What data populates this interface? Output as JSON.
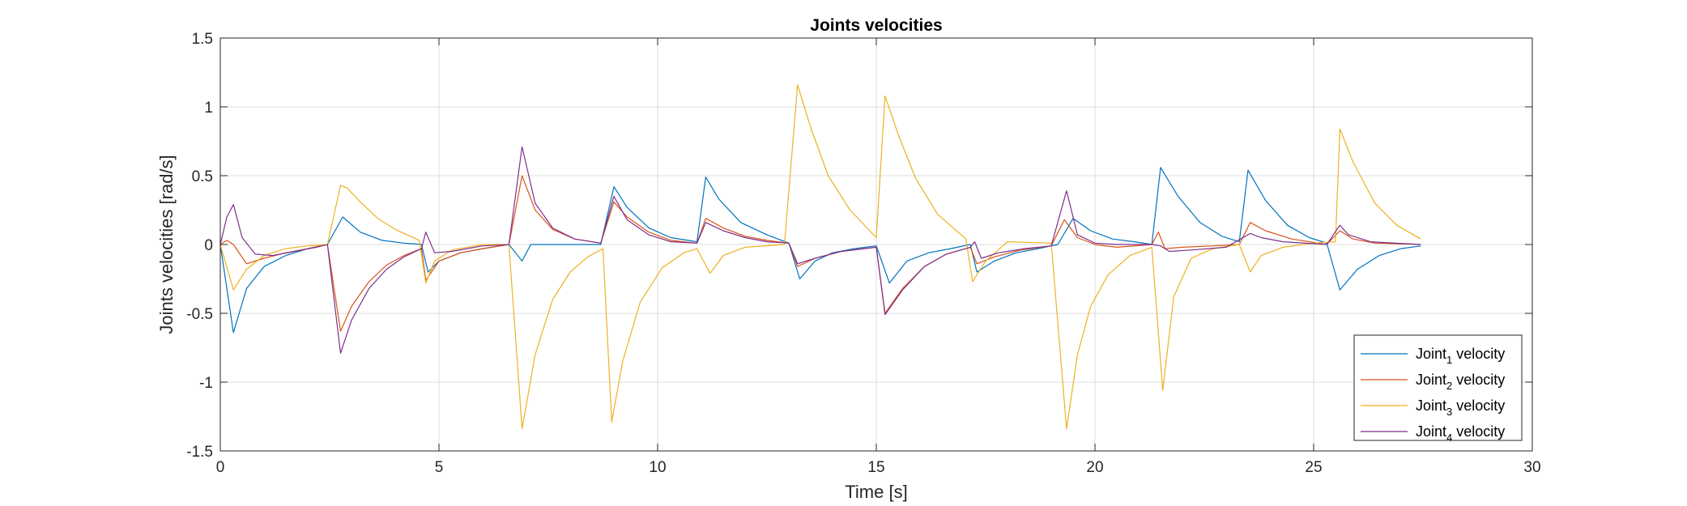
{
  "chart_data": {
    "type": "line",
    "title": "Joints velocities",
    "xlabel": "Time [s]",
    "ylabel": "Joints velocities [rad/s]",
    "xlim": [
      0,
      30
    ],
    "ylim": [
      -1.5,
      1.5
    ],
    "xticks": [
      0,
      5,
      10,
      15,
      20,
      25,
      30
    ],
    "yticks": [
      -1.5,
      -1,
      -0.5,
      0,
      0.5,
      1,
      1.5
    ],
    "xtick_labels": [
      "0",
      "5",
      "10",
      "15",
      "20",
      "25",
      "30"
    ],
    "ytick_labels": [
      "-1.5",
      "-1",
      "-0.5",
      "0",
      "0.5",
      "1",
      "1.5"
    ],
    "grid": true,
    "legend_position": "bottom-right",
    "series": [
      {
        "name": "Joint",
        "subscript": "1",
        "suffix": " velocity",
        "color": "#0072BD",
        "x": [
          0,
          0.3,
          0.6,
          1.0,
          1.5,
          2.0,
          2.45,
          2.8,
          3.2,
          3.7,
          4.2,
          4.6,
          4.75,
          5.0,
          5.5,
          6.0,
          6.6,
          6.9,
          7.1,
          7.5,
          8.0,
          8.7,
          9.0,
          9.3,
          9.8,
          10.3,
          10.9,
          11.1,
          11.4,
          11.9,
          12.5,
          13.0,
          13.25,
          13.6,
          14.0,
          14.5,
          15.0,
          15.3,
          15.7,
          16.2,
          16.7,
          17.15,
          17.3,
          17.7,
          18.2,
          18.7,
          19.15,
          19.5,
          19.9,
          20.4,
          20.9,
          21.3,
          21.5,
          21.9,
          22.4,
          22.9,
          23.3,
          23.5,
          23.9,
          24.4,
          24.9,
          25.3,
          25.6,
          26.0,
          26.5,
          27.0,
          27.45
        ],
        "y": [
          0,
          -0.64,
          -0.32,
          -0.16,
          -0.08,
          -0.03,
          0,
          0.2,
          0.09,
          0.03,
          0.01,
          0,
          -0.2,
          -0.12,
          -0.06,
          -0.03,
          0,
          -0.12,
          0,
          0,
          0,
          0,
          0.42,
          0.27,
          0.12,
          0.05,
          0.02,
          0.49,
          0.33,
          0.16,
          0.07,
          0.01,
          -0.25,
          -0.12,
          -0.06,
          -0.03,
          -0.01,
          -0.28,
          -0.12,
          -0.06,
          -0.03,
          0,
          -0.2,
          -0.12,
          -0.06,
          -0.03,
          0,
          0.19,
          0.1,
          0.04,
          0.02,
          0,
          0.56,
          0.35,
          0.16,
          0.06,
          0.02,
          0.54,
          0.32,
          0.14,
          0.05,
          0.01,
          -0.33,
          -0.18,
          -0.08,
          -0.03,
          -0.01
        ]
      },
      {
        "name": "Joint",
        "subscript": "2",
        "suffix": " velocity",
        "color": "#D95319",
        "x": [
          0,
          0.15,
          0.3,
          0.6,
          1.0,
          1.5,
          2.0,
          2.45,
          2.75,
          3.0,
          3.4,
          3.8,
          4.2,
          4.6,
          4.7,
          5.0,
          5.5,
          6.0,
          6.6,
          6.9,
          7.2,
          7.6,
          8.1,
          8.7,
          9.0,
          9.3,
          9.8,
          10.3,
          10.9,
          11.1,
          11.5,
          12.0,
          12.5,
          13.0,
          13.2,
          13.6,
          14.2,
          15.0,
          15.2,
          15.6,
          16.1,
          16.6,
          17.15,
          17.3,
          17.7,
          18.3,
          19.0,
          19.3,
          19.6,
          20.0,
          20.5,
          21.3,
          21.45,
          21.6,
          22.0,
          22.7,
          23.3,
          23.55,
          23.9,
          24.5,
          25.3,
          25.6,
          25.9,
          26.4,
          27.45
        ],
        "y": [
          0,
          0.03,
          0,
          -0.14,
          -0.1,
          -0.06,
          -0.03,
          0,
          -0.63,
          -0.45,
          -0.27,
          -0.15,
          -0.08,
          -0.03,
          -0.26,
          -0.12,
          -0.06,
          -0.03,
          0,
          0.5,
          0.25,
          0.11,
          0.04,
          0.01,
          0.31,
          0.2,
          0.09,
          0.03,
          0.01,
          0.19,
          0.12,
          0.06,
          0.03,
          0.01,
          -0.16,
          -0.1,
          -0.05,
          -0.02,
          -0.5,
          -0.32,
          -0.16,
          -0.07,
          -0.02,
          -0.14,
          -0.09,
          -0.04,
          -0.01,
          0.18,
          0.05,
          0,
          -0.02,
          0,
          0.09,
          -0.03,
          -0.02,
          -0.01,
          0,
          0.16,
          0.1,
          0.04,
          0,
          0.1,
          0.04,
          0.01,
          0
        ],
        "style": "solid"
      },
      {
        "name": "Joint",
        "subscript": "3",
        "suffix": " velocity",
        "color": "#EDB120",
        "x": [
          0,
          0.3,
          0.6,
          1.0,
          1.5,
          2.0,
          2.45,
          2.75,
          2.9,
          3.2,
          3.6,
          4.0,
          4.55,
          4.7,
          4.9,
          5.3,
          6.0,
          6.6,
          6.9,
          7.2,
          7.6,
          8.0,
          8.4,
          8.75,
          8.95,
          9.2,
          9.6,
          10.1,
          10.6,
          10.9,
          11.2,
          11.5,
          12.0,
          12.9,
          13.2,
          13.5,
          13.9,
          14.4,
          15.0,
          15.2,
          15.5,
          15.9,
          16.4,
          17.05,
          17.2,
          17.5,
          18.0,
          19.0,
          19.35,
          19.6,
          19.9,
          20.3,
          20.8,
          21.3,
          21.55,
          21.8,
          22.2,
          22.7,
          23.3,
          23.55,
          23.8,
          24.3,
          25.0,
          25.5,
          25.6,
          25.9,
          26.4,
          26.9,
          27.45
        ],
        "y": [
          0,
          -0.33,
          -0.18,
          -0.08,
          -0.03,
          -0.01,
          0,
          0.43,
          0.41,
          0.31,
          0.19,
          0.11,
          0.03,
          -0.28,
          -0.12,
          -0.04,
          0,
          0,
          -1.34,
          -0.8,
          -0.4,
          -0.2,
          -0.09,
          -0.03,
          -1.29,
          -0.85,
          -0.42,
          -0.17,
          -0.06,
          -0.03,
          -0.21,
          -0.08,
          -0.02,
          0,
          1.16,
          0.85,
          0.5,
          0.25,
          0.05,
          1.08,
          0.8,
          0.48,
          0.22,
          0.04,
          -0.27,
          -0.12,
          0.02,
          0.01,
          -1.34,
          -0.8,
          -0.45,
          -0.22,
          -0.08,
          -0.02,
          -1.06,
          -0.38,
          -0.1,
          -0.03,
          0,
          -0.2,
          -0.08,
          -0.02,
          0.01,
          0.02,
          0.84,
          0.6,
          0.3,
          0.14,
          0.04
        ]
      },
      {
        "name": "Joint",
        "subscript": "4",
        "suffix": " velocity",
        "color": "#7E2F8E",
        "x": [
          0,
          0.15,
          0.3,
          0.5,
          0.8,
          1.2,
          1.7,
          2.2,
          2.45,
          2.75,
          3.0,
          3.4,
          3.8,
          4.2,
          4.6,
          4.7,
          4.9,
          5.3,
          6.0,
          6.6,
          6.9,
          7.2,
          7.6,
          8.1,
          8.7,
          9.0,
          9.3,
          9.8,
          10.3,
          10.9,
          11.1,
          11.5,
          12.0,
          12.5,
          13.0,
          13.2,
          13.6,
          14.2,
          15.0,
          15.2,
          15.6,
          16.1,
          16.6,
          17.15,
          17.25,
          17.4,
          17.8,
          18.4,
          19.0,
          19.35,
          19.6,
          20.0,
          20.5,
          21.3,
          21.5,
          21.7,
          22.2,
          23.0,
          23.55,
          23.8,
          24.3,
          25.3,
          25.6,
          25.8,
          26.3,
          27.45
        ],
        "y": [
          0,
          0.2,
          0.29,
          0.05,
          -0.07,
          -0.08,
          -0.05,
          -0.02,
          0,
          -0.79,
          -0.55,
          -0.32,
          -0.18,
          -0.09,
          -0.03,
          0.09,
          -0.06,
          -0.05,
          -0.01,
          0,
          0.71,
          0.3,
          0.12,
          0.04,
          0.01,
          0.35,
          0.18,
          0.07,
          0.02,
          0.01,
          0.16,
          0.1,
          0.05,
          0.02,
          0.01,
          -0.14,
          -0.1,
          -0.05,
          -0.02,
          -0.51,
          -0.33,
          -0.16,
          -0.07,
          -0.02,
          0.02,
          -0.1,
          -0.06,
          -0.03,
          -0.01,
          0.39,
          0.07,
          0.01,
          0,
          0,
          -0.01,
          -0.05,
          -0.04,
          -0.02,
          0.08,
          0.05,
          0.02,
          0,
          0.14,
          0.07,
          0.02,
          0
        ]
      }
    ]
  }
}
